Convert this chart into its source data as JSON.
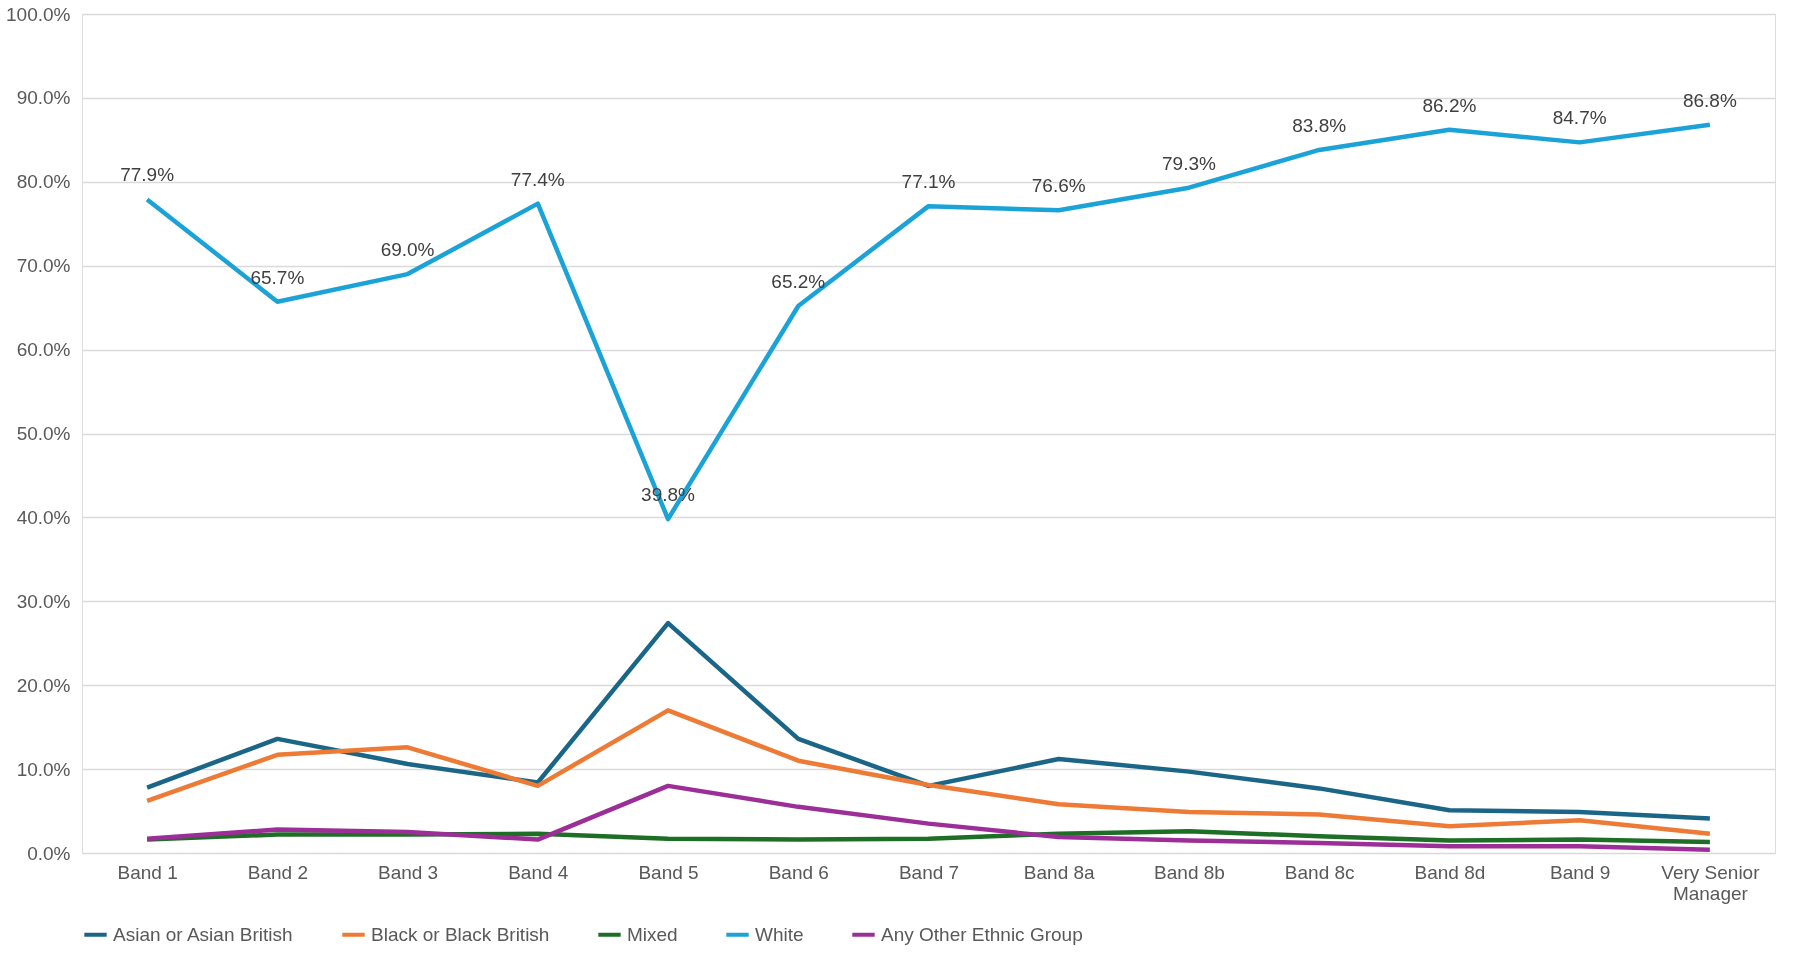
{
  "chart_data": {
    "type": "line",
    "categories": [
      "Band 1",
      "Band 2",
      "Band 3",
      "Band 4",
      "Band 5",
      "Band 6",
      "Band 7",
      "Band 8a",
      "Band 8b",
      "Band 8c",
      "Band 8d",
      "Band 9",
      "Very Senior Manager"
    ],
    "series": [
      {
        "name": "Asian or Asian British",
        "color": "#1b6687",
        "values": [
          7.8,
          13.6,
          10.6,
          8.4,
          27.4,
          13.6,
          8.0,
          11.2,
          9.7,
          7.7,
          5.1,
          4.9,
          4.1
        ]
      },
      {
        "name": "Black or Black British",
        "color": "#ed7a35",
        "values": [
          6.2,
          11.7,
          12.6,
          8.0,
          17.0,
          11.0,
          8.1,
          5.8,
          4.9,
          4.6,
          3.2,
          3.9,
          2.3
        ]
      },
      {
        "name": "Mixed",
        "color": "#1e6e25",
        "values": [
          1.6,
          2.2,
          2.2,
          2.3,
          1.7,
          1.6,
          1.7,
          2.3,
          2.6,
          2.0,
          1.5,
          1.6,
          1.3
        ]
      },
      {
        "name": "White",
        "color": "#1ba3d8",
        "values": [
          77.9,
          65.7,
          69.0,
          77.4,
          39.8,
          65.2,
          77.1,
          76.6,
          79.3,
          83.8,
          86.2,
          84.7,
          86.8
        ],
        "value_labels": [
          "77.9%",
          "65.7%",
          "69.0%",
          "77.4%",
          "39.8%",
          "65.2%",
          "77.1%",
          "76.6%",
          "79.3%",
          "83.8%",
          "86.2%",
          "84.7%",
          "86.8%"
        ]
      },
      {
        "name": "Any Other Ethnic Group",
        "color": "#9b2f97",
        "values": [
          1.7,
          2.8,
          2.5,
          1.6,
          8.0,
          5.5,
          3.5,
          1.9,
          1.5,
          1.2,
          0.8,
          0.8,
          0.4
        ]
      }
    ],
    "ylim": [
      0,
      100
    ],
    "yticks": [
      {
        "value": 0,
        "label": "0.0%"
      },
      {
        "value": 10,
        "label": "10.0%"
      },
      {
        "value": 20,
        "label": "20.0%"
      },
      {
        "value": 30,
        "label": "30.0%"
      },
      {
        "value": 40,
        "label": "40.0%"
      },
      {
        "value": 50,
        "label": "50.0%"
      },
      {
        "value": 60,
        "label": "60.0%"
      },
      {
        "value": 70,
        "label": "70.0%"
      },
      {
        "value": 80,
        "label": "80.0%"
      },
      {
        "value": 90,
        "label": "90.0%"
      },
      {
        "value": 100,
        "label": "100.0%"
      }
    ],
    "grid": "y",
    "legend": "bottom",
    "marker": "none",
    "line_style": "solid"
  }
}
